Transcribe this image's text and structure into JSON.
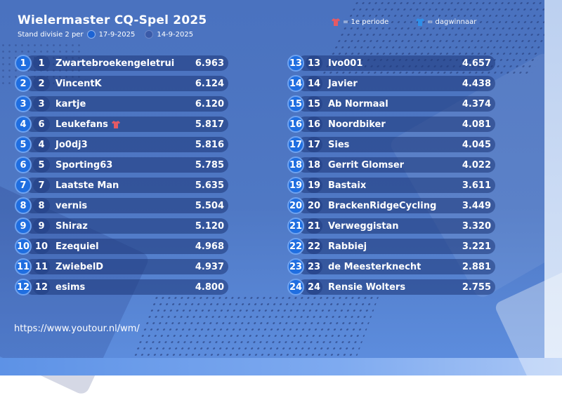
{
  "header": {
    "title": "Wielermaster CQ-Spel 2025",
    "subtitle_prefix": "Stand divisie 2 per",
    "date_current": "17-9-2025",
    "date_previous": "14-9-2025"
  },
  "legend": {
    "period_label": "= 1e periode",
    "day_label": "= dagwinnaar",
    "period_color": "#e45a64",
    "day_color": "#2f8fe8"
  },
  "standings_left": [
    {
      "rank": "1",
      "prev": "1",
      "name": "Zwartebroekengeletrui",
      "score": "6.963",
      "badge": ""
    },
    {
      "rank": "2",
      "prev": "2",
      "name": "VincentK",
      "score": "6.124",
      "badge": ""
    },
    {
      "rank": "3",
      "prev": "3",
      "name": "kartje",
      "score": "6.120",
      "badge": ""
    },
    {
      "rank": "4",
      "prev": "6",
      "name": "Leukefans",
      "score": "5.817",
      "badge": "period-shirt-icon"
    },
    {
      "rank": "5",
      "prev": "4",
      "name": "Jo0dj3",
      "score": "5.816",
      "badge": ""
    },
    {
      "rank": "6",
      "prev": "5",
      "name": "Sporting63",
      "score": "5.785",
      "badge": ""
    },
    {
      "rank": "7",
      "prev": "7",
      "name": "Laatste Man",
      "score": "5.635",
      "badge": ""
    },
    {
      "rank": "8",
      "prev": "8",
      "name": "vernis",
      "score": "5.504",
      "badge": ""
    },
    {
      "rank": "9",
      "prev": "9",
      "name": "Shiraz",
      "score": "5.120",
      "badge": ""
    },
    {
      "rank": "10",
      "prev": "10",
      "name": "Ezequiel",
      "score": "4.968",
      "badge": ""
    },
    {
      "rank": "11",
      "prev": "11",
      "name": "ZwiebelD",
      "score": "4.937",
      "badge": ""
    },
    {
      "rank": "12",
      "prev": "12",
      "name": "esims",
      "score": "4.800",
      "badge": ""
    }
  ],
  "standings_right": [
    {
      "rank": "13",
      "prev": "13",
      "name": "Ivo001",
      "score": "4.657",
      "badge": ""
    },
    {
      "rank": "14",
      "prev": "14",
      "name": "Javier",
      "score": "4.438",
      "badge": ""
    },
    {
      "rank": "15",
      "prev": "15",
      "name": "Ab Normaal",
      "score": "4.374",
      "badge": ""
    },
    {
      "rank": "16",
      "prev": "16",
      "name": "Noordbiker",
      "score": "4.081",
      "badge": ""
    },
    {
      "rank": "17",
      "prev": "17",
      "name": "Sies",
      "score": "4.045",
      "badge": ""
    },
    {
      "rank": "18",
      "prev": "18",
      "name": "Gerrit Glomser",
      "score": "4.022",
      "badge": ""
    },
    {
      "rank": "19",
      "prev": "19",
      "name": "Bastaix",
      "score": "3.611",
      "badge": ""
    },
    {
      "rank": "20",
      "prev": "20",
      "name": "BrackenRidgeCycling",
      "score": "3.449",
      "badge": ""
    },
    {
      "rank": "21",
      "prev": "21",
      "name": "Verweggistan",
      "score": "3.320",
      "badge": ""
    },
    {
      "rank": "22",
      "prev": "22",
      "name": "Rabbiej",
      "score": "3.221",
      "badge": ""
    },
    {
      "rank": "23",
      "prev": "23",
      "name": "de Meesterknecht",
      "score": "2.881",
      "badge": ""
    },
    {
      "rank": "24",
      "prev": "24",
      "name": "Rensie Wolters",
      "score": "2.755",
      "badge": ""
    }
  ],
  "footer": {
    "url": "https://www.youtour.nl/wm/"
  }
}
